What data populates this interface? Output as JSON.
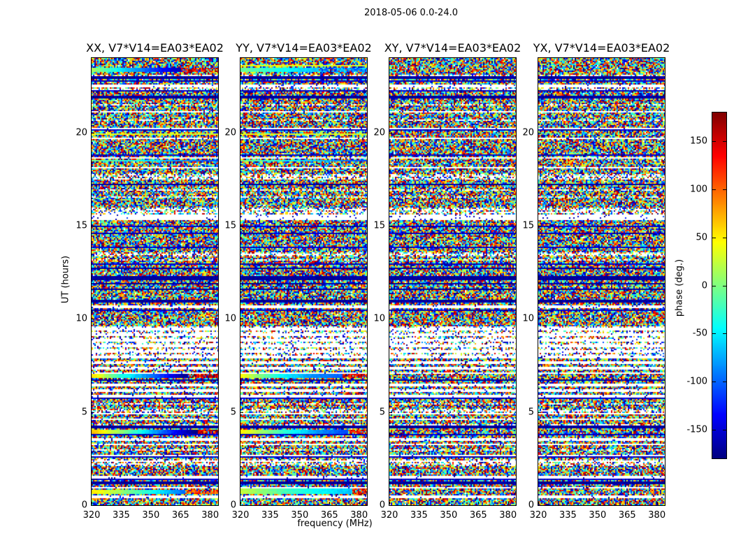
{
  "figure": {
    "background": "#ffffff"
  },
  "chart_data": {
    "type": "heatmap",
    "title": "2018-05-06 0.0-24.0",
    "xlabel": "frequency (MHz)",
    "ylabel": "UT (hours)",
    "xlim": [
      320,
      384
    ],
    "ylim": [
      0,
      24
    ],
    "xticks": [
      320,
      335,
      350,
      365,
      380
    ],
    "yticks": [
      0,
      5,
      10,
      15,
      20
    ],
    "grid": false,
    "panels": [
      {
        "label": "XX, V7*V14=EA03*EA02",
        "pol": "XX"
      },
      {
        "label": "YY, V7*V14=EA03*EA02",
        "pol": "YY"
      },
      {
        "label": "XY, V7*V14=EA03*EA02",
        "pol": "XY"
      },
      {
        "label": "YX, V7*V14=EA03*EA02",
        "pol": "YX"
      }
    ],
    "colorbar": {
      "label": "phase (deg.)",
      "ticks": [
        150,
        100,
        50,
        0,
        -50,
        -100,
        -150
      ],
      "vmin": -180,
      "vmax": 180,
      "colormap": "jet",
      "position": "right"
    },
    "noise": {
      "seed": 20180506,
      "gap_rows": [
        [
          22.5,
          0.08
        ],
        [
          21.1,
          0.1
        ],
        [
          20.2,
          0.12
        ],
        [
          19.7,
          0.1
        ],
        [
          18.62,
          0.1
        ],
        [
          18.08,
          0.08
        ],
        [
          15.45,
          0.3
        ],
        [
          10.65,
          0.1
        ],
        [
          9.45,
          0.08
        ],
        [
          9.15,
          0.08
        ],
        [
          8.85,
          0.08
        ],
        [
          8.55,
          0.08
        ],
        [
          8.25,
          0.08
        ],
        [
          7.95,
          0.08
        ],
        [
          7.65,
          0.08
        ],
        [
          7.35,
          0.08
        ],
        [
          7.12,
          0.08
        ],
        [
          6.45,
          0.1
        ],
        [
          6.15,
          0.08
        ],
        [
          5.85,
          0.08
        ],
        [
          4.88,
          0.08
        ],
        [
          4.58,
          0.08
        ],
        [
          3.53,
          0.1
        ],
        [
          3.23,
          0.08
        ],
        [
          2.63,
          0.08
        ],
        [
          2.33,
          0.08
        ],
        [
          1.5,
          0.12
        ],
        [
          0.94,
          0.08
        ],
        [
          0.45,
          0.08
        ]
      ],
      "black_rows": [
        [
          22.95,
          0.08
        ],
        [
          21.9,
          0.1
        ],
        [
          17.2,
          0.08
        ],
        [
          12.72,
          0.1
        ],
        [
          12.2,
          0.22
        ],
        [
          11.9,
          0.08
        ],
        [
          11.62,
          0.08
        ],
        [
          10.95,
          0.08
        ],
        [
          6.7,
          0.08
        ],
        [
          4.2,
          0.08
        ],
        [
          1.2,
          0.1
        ]
      ],
      "sparse_bands": [
        [
          8.0,
          9.6
        ],
        [
          15.6,
          16.0
        ],
        [
          4.95,
          5.2
        ],
        [
          2.1,
          2.5
        ],
        [
          22.25,
          22.45
        ],
        [
          17.45,
          17.75
        ],
        [
          13.35,
          13.6
        ]
      ],
      "coherent_bands": {
        "XX": [
          {
            "ut": 23.35,
            "h": 0.22,
            "stops": [
              [
                0,
                15
              ],
              [
                0.3,
                -70
              ],
              [
                0.55,
                -130
              ],
              [
                0.7,
                -160
              ]
            ],
            "noise_right": 0.7,
            "right_phase": 140
          },
          {
            "ut": 19.9,
            "h": 0.11,
            "stops": [
              [
                0,
                40
              ],
              [
                1,
                25
              ]
            ],
            "noise_right": 1.01,
            "right_phase": 0
          },
          {
            "ut": 18.5,
            "h": 0.12,
            "stops": [
              [
                0,
                -5
              ],
              [
                0.5,
                -55
              ],
              [
                1,
                -115
              ]
            ],
            "noise_right": 1.01,
            "right_phase": 0
          },
          {
            "ut": 6.95,
            "h": 0.26,
            "stops": [
              [
                0,
                60
              ],
              [
                0.22,
                -30
              ],
              [
                0.5,
                -100
              ],
              [
                0.72,
                -168
              ]
            ],
            "noise_right": 0.76,
            "right_phase": 150
          },
          {
            "ut": 3.95,
            "h": 0.19,
            "stops": [
              [
                0,
                70
              ],
              [
                0.2,
                15
              ],
              [
                0.45,
                -60
              ],
              [
                0.65,
                -130
              ],
              [
                0.82,
                -178
              ]
            ],
            "noise_right": 0.84,
            "right_phase": 155
          },
          {
            "ut": 0.72,
            "h": 0.26,
            "stops": [
              [
                0,
                55
              ],
              [
                0.25,
                5
              ],
              [
                0.5,
                -45
              ],
              [
                0.72,
                -95
              ]
            ],
            "noise_right": 0.74,
            "right_phase": 120
          }
        ],
        "YY": [
          {
            "ut": 23.6,
            "h": 0.12,
            "stops": [
              [
                0,
                40
              ],
              [
                1,
                30
              ]
            ],
            "noise_right": 1.01,
            "right_phase": 0
          },
          {
            "ut": 23.35,
            "h": 0.18,
            "stops": [
              [
                0,
                -5
              ],
              [
                0.45,
                -55
              ],
              [
                0.6,
                -65
              ]
            ],
            "noise_right": 0.62,
            "right_phase": -90
          },
          {
            "ut": 19.9,
            "h": 0.11,
            "stops": [
              [
                0,
                35
              ],
              [
                1,
                30
              ]
            ],
            "noise_right": 1.01,
            "right_phase": 0
          },
          {
            "ut": 18.5,
            "h": 0.12,
            "stops": [
              [
                0,
                -5
              ],
              [
                0.5,
                -55
              ],
              [
                1,
                -115
              ]
            ],
            "noise_right": 1.01,
            "right_phase": 0
          },
          {
            "ut": 6.95,
            "h": 0.26,
            "stops": [
              [
                0,
                45
              ],
              [
                0.3,
                -40
              ],
              [
                0.6,
                -90
              ],
              [
                1,
                -110
              ]
            ],
            "noise_right": 0.8,
            "right_phase": 150
          },
          {
            "ut": 3.95,
            "h": 0.19,
            "stops": [
              [
                0,
                50
              ],
              [
                0.3,
                -20
              ],
              [
                0.6,
                -80
              ],
              [
                1,
                -130
              ]
            ],
            "noise_right": 0.85,
            "right_phase": 140
          },
          {
            "ut": 0.72,
            "h": 0.3,
            "stops": [
              [
                0,
                25
              ],
              [
                0.4,
                -25
              ],
              [
                0.8,
                -60
              ],
              [
                1,
                -70
              ]
            ],
            "noise_right": 0.88,
            "right_phase": 130
          }
        ],
        "XY": [],
        "YX": []
      }
    }
  }
}
